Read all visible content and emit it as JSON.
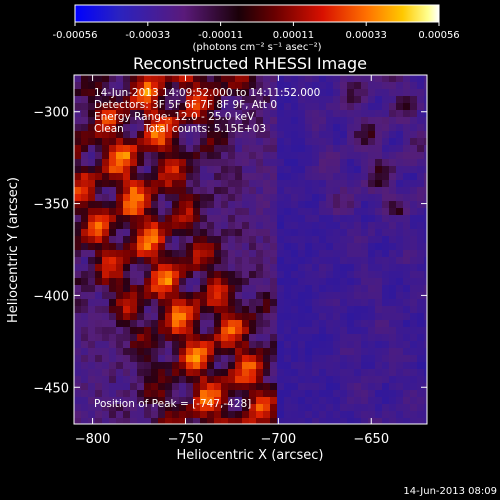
{
  "chart_data": {
    "type": "heatmap",
    "title": "Reconstructed RHESSI Image",
    "xlabel": "Heliocentric X (arcsec)",
    "ylabel": "Heliocentric Y (arcsec)",
    "xlim": [
      -810,
      -620
    ],
    "ylim": [
      -470,
      -280
    ],
    "xticks": [
      -800,
      -750,
      -700,
      -650
    ],
    "yticks": [
      -300,
      -350,
      -400,
      -450
    ],
    "colorbar": {
      "min": -0.00056,
      "max": 0.00056,
      "ticks": [
        "-0.00056",
        "-0.00033",
        "-0.00011",
        "0.00011",
        "0.00033",
        "0.00056"
      ],
      "units": "(photons cm⁻² s⁻¹ asec⁻²)",
      "colors": [
        "#0000ff",
        "#3a1aa0",
        "#5a1a7a",
        "#1a0008",
        "#8a0000",
        "#e01000",
        "#ff6a00",
        "#ffc000",
        "#ffff70",
        "#ffffff"
      ]
    },
    "annotations": {
      "time_range": "14-Jun-2013 14:09:52.000 to 14:11:52.000",
      "detectors": "Detectors: 3F 5F 6F 7F 8F 9F, Att 0",
      "energy": "Energy Range: 12.0 - 25.0 keV",
      "method": "Clean",
      "counts": "Total counts: 5.15E+03",
      "peak": "Position of Peak = [-747,-428]"
    },
    "footer_date": "14-Jun-2013 08:09"
  }
}
